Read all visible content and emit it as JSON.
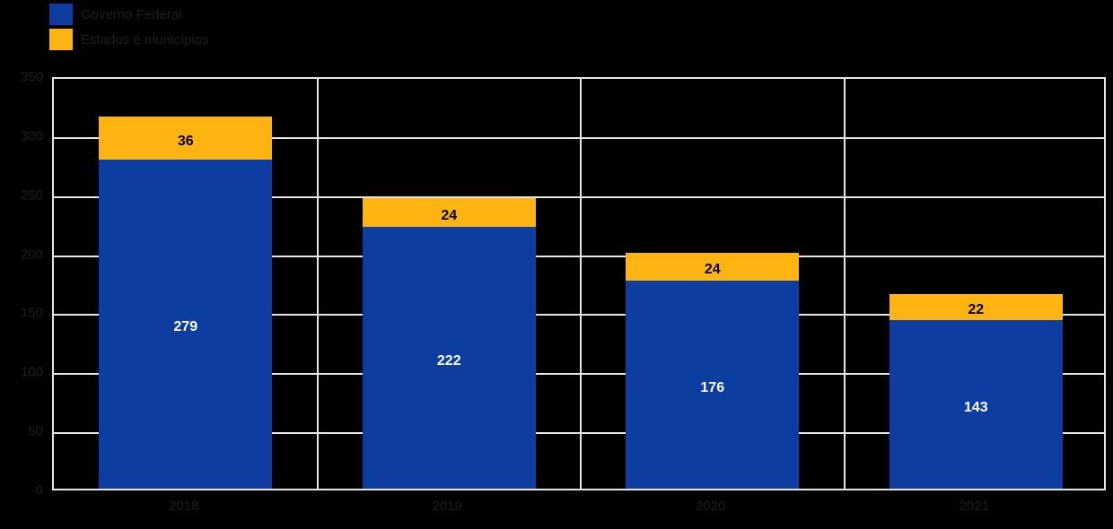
{
  "colors": {
    "background": "#000000",
    "series_blue": "#0d3da0",
    "series_orange": "#ffb412",
    "grid": "#e6e6e6",
    "axis_text": "#1e1e1e",
    "label_on_blue": "#ffffff",
    "label_on_orange": "#000000"
  },
  "legend": {
    "items": [
      {
        "label": "Governo Federal",
        "color": "#0d3da0"
      },
      {
        "label": "Estados e municípios",
        "color": "#ffb412"
      }
    ]
  },
  "chart_data": {
    "type": "bar",
    "stacked": true,
    "title": "",
    "xlabel": "",
    "ylabel": "",
    "categories": [
      "2018",
      "2019",
      "2020",
      "2021"
    ],
    "series": [
      {
        "name": "Governo Federal",
        "color": "#0d3da0",
        "label_color": "#ffffff",
        "values": [
          279,
          222,
          176,
          143
        ]
      },
      {
        "name": "Estados e municípios",
        "color": "#ffb412",
        "label_color": "#000000",
        "values": [
          36,
          24,
          24,
          22
        ]
      }
    ],
    "totals": [
      315,
      246,
      200,
      165
    ],
    "ylim": [
      0,
      350
    ],
    "yticks": [
      0,
      50,
      100,
      150,
      200,
      250,
      300,
      350
    ],
    "grid": true,
    "legend_position": "top-left",
    "data_labels": true
  }
}
